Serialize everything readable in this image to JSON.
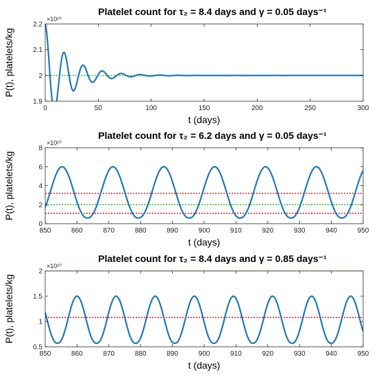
{
  "chart_data": [
    {
      "type": "line",
      "title": "Platelet count for τ₂ = 8.4 days and γ = 0.05 days⁻¹",
      "xlabel": "t (days)",
      "ylabel": "P(t), platelets/kg",
      "y_exponent": "×10¹⁰",
      "xlim": [
        0,
        300
      ],
      "ylim": [
        1.9,
        2.2
      ],
      "xticks": [
        0,
        50,
        100,
        150,
        200,
        250,
        300
      ],
      "yticks": [
        1.9,
        2,
        2.1,
        2.2
      ],
      "ytick_labels": [
        "1.9",
        "2",
        "2.1",
        "2.2"
      ],
      "series": [
        {
          "kind": "damped_oscillation",
          "color": "#1f77b4",
          "x_start": 0,
          "x_end": 300,
          "baseline": 2.0,
          "amplitude": 0.2,
          "period": 18.0,
          "decay_rate": 0.045
        }
      ],
      "reference_lines": [
        {
          "y": 2.0,
          "color": "#22cc22"
        }
      ]
    },
    {
      "type": "line",
      "title": "Platelet count for τ₂ = 6.2 days and γ = 0.05 days⁻¹",
      "xlabel": "t (days)",
      "ylabel": "P(t), platelets/kg",
      "y_exponent": "×10¹⁰",
      "xlim": [
        850,
        950
      ],
      "ylim": [
        0,
        8
      ],
      "xticks": [
        850,
        860,
        870,
        880,
        890,
        900,
        910,
        920,
        930,
        940,
        950
      ],
      "yticks": [
        0,
        2,
        4,
        6,
        8
      ],
      "ytick_labels": [
        "0",
        "2",
        "4",
        "6",
        "8"
      ],
      "series": [
        {
          "kind": "periodic_oscillation",
          "color": "#1f77b4",
          "x_start": 850,
          "x_end": 950,
          "min": 0.6,
          "max": 6.0,
          "period": 16.0,
          "peak_at": 855.3
        }
      ],
      "reference_lines": [
        {
          "y": 2.0,
          "color": "#22cc22"
        },
        {
          "y": 3.2,
          "color": "#ee1111"
        },
        {
          "y": 1.1,
          "color": "#ee1111"
        }
      ]
    },
    {
      "type": "line",
      "title": "Platelet count for τ₂ = 8.4 days and γ = 0.85 days⁻¹",
      "xlabel": "t (days)",
      "ylabel": "P(t), platelets/kg",
      "y_exponent": "×10¹⁰",
      "xlim": [
        850,
        950
      ],
      "ylim": [
        0.5,
        2
      ],
      "xticks": [
        850,
        860,
        870,
        880,
        890,
        900,
        910,
        920,
        930,
        940,
        950
      ],
      "yticks": [
        0.5,
        1,
        1.5,
        2
      ],
      "ytick_labels": [
        "0.5",
        "1",
        "1.5",
        "2"
      ],
      "series": [
        {
          "kind": "periodic_oscillation",
          "color": "#1f77b4",
          "x_start": 850,
          "x_end": 950,
          "min": 0.57,
          "max": 1.5,
          "period": 12.3,
          "peak_at": 860.0
        }
      ],
      "reference_lines": [
        {
          "y": 2.0,
          "color": "#22cc22"
        },
        {
          "y": 1.08,
          "color": "#ee1111"
        }
      ]
    }
  ]
}
